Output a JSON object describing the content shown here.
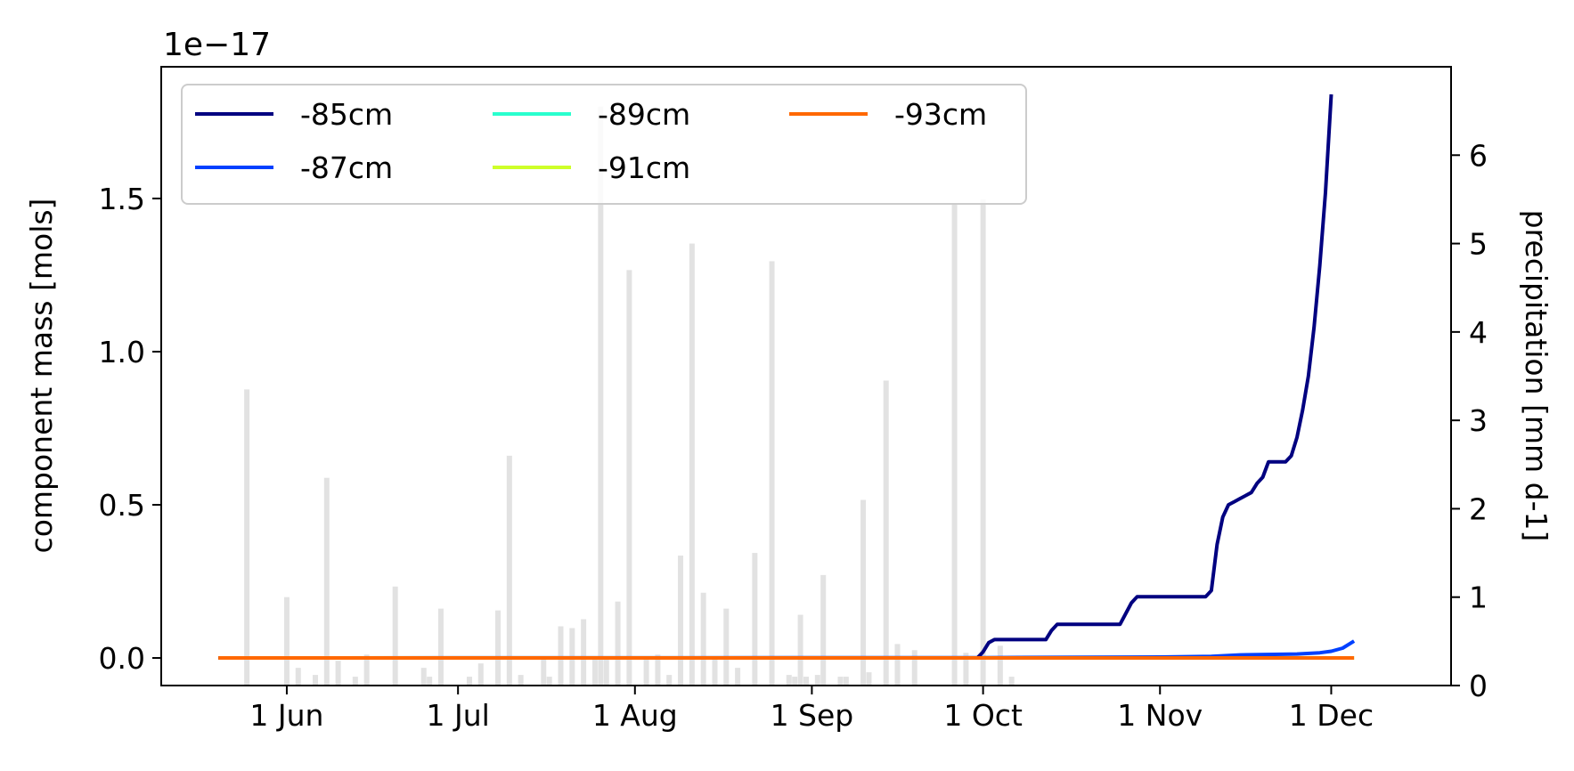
{
  "chart_data": {
    "type": "line",
    "title": "",
    "xlabel": "",
    "ylabel": "component mass [mols]",
    "y_offset_label": "1e−17",
    "y_scale": 1e-17,
    "ylim": [
      -0.09,
      1.93
    ],
    "yticks": [
      0.0,
      0.5,
      1.0,
      1.5
    ],
    "ytick_labels": [
      "0.0",
      "0.5",
      "1.0",
      "1.5"
    ],
    "xlim": [
      "2020-05-10",
      "2020-12-22"
    ],
    "xticks": [
      "2020-06-01",
      "2020-07-01",
      "2020-08-01",
      "2020-09-01",
      "2020-10-01",
      "2020-11-01",
      "2020-12-01"
    ],
    "xtick_labels": [
      "1 Jun",
      "1 Jul",
      "1 Aug",
      "1 Sep",
      "1 Oct",
      "1 Nov",
      "1 Dec"
    ],
    "y2label": "precipitation [mm d-1]",
    "y2lim": [
      0,
      7.0
    ],
    "y2ticks": [
      0,
      1,
      2,
      3,
      4,
      5,
      6
    ],
    "y2tick_labels": [
      "0",
      "1",
      "2",
      "3",
      "4",
      "5",
      "6"
    ],
    "grid": false,
    "legend": {
      "placement": "upper-left",
      "columns": 3
    },
    "series": [
      {
        "name": "-85cm",
        "color": "#000080",
        "x": [
          "2020-05-20",
          "2020-06-10",
          "2020-07-10",
          "2020-08-10",
          "2020-09-10",
          "2020-09-30",
          "2020-10-01",
          "2020-10-02",
          "2020-10-03",
          "2020-10-12",
          "2020-10-13",
          "2020-10-14",
          "2020-10-15",
          "2020-10-25",
          "2020-10-27",
          "2020-10-28",
          "2020-11-09",
          "2020-11-10",
          "2020-11-11",
          "2020-11-12",
          "2020-11-13",
          "2020-11-14",
          "2020-11-15",
          "2020-11-17",
          "2020-11-18",
          "2020-11-19",
          "2020-11-20",
          "2020-11-21",
          "2020-11-22",
          "2020-11-23",
          "2020-11-24",
          "2020-11-25",
          "2020-11-26",
          "2020-11-27",
          "2020-11-28",
          "2020-11-29",
          "2020-11-30",
          "2020-12-01",
          "2020-12-02",
          "2020-12-03",
          "2020-12-04",
          "2020-12-05"
        ],
        "y": [
          0,
          0,
          0,
          0,
          0,
          0,
          0.02,
          0.05,
          0.06,
          0.06,
          0.09,
          0.11,
          0.11,
          0.11,
          0.18,
          0.2,
          0.2,
          0.22,
          0.37,
          0.46,
          0.5,
          0.51,
          0.52,
          0.54,
          0.57,
          0.59,
          0.64,
          0.64,
          0.64,
          0.64,
          0.66,
          0.72,
          0.81,
          0.92,
          1.08,
          1.28,
          1.52,
          1.84,
          0,
          0,
          0,
          0
        ],
        "y_valid_count": 38,
        "note_x_end": "2020-12-05"
      },
      {
        "name": "-87cm",
        "color": "#0040ff",
        "x": [
          "2020-05-20",
          "2020-10-01",
          "2020-11-01",
          "2020-11-10",
          "2020-11-15",
          "2020-11-25",
          "2020-11-29",
          "2020-12-01",
          "2020-12-03",
          "2020-12-05"
        ],
        "y": [
          0,
          0.001,
          0.003,
          0.005,
          0.01,
          0.013,
          0.017,
          0.022,
          0.032,
          0.055
        ]
      },
      {
        "name": "-89cm",
        "color": "#29ffce",
        "x": [
          "2020-05-20",
          "2020-12-05"
        ],
        "y": [
          0,
          0
        ]
      },
      {
        "name": "-91cm",
        "color": "#ceff29",
        "x": [
          "2020-05-20",
          "2020-12-05"
        ],
        "y": [
          0,
          0
        ]
      },
      {
        "name": "-93cm",
        "color": "#ff6800",
        "x": [
          "2020-05-20",
          "2020-12-05"
        ],
        "y": [
          0,
          0
        ]
      }
    ],
    "precip_bars": {
      "color": "#e2e2e2",
      "axis": "right",
      "x": [
        "2020-05-25",
        "2020-06-01",
        "2020-06-03",
        "2020-06-06",
        "2020-06-08",
        "2020-06-10",
        "2020-06-13",
        "2020-06-15",
        "2020-06-20",
        "2020-06-25",
        "2020-06-26",
        "2020-06-28",
        "2020-07-03",
        "2020-07-05",
        "2020-07-08",
        "2020-07-10",
        "2020-07-12",
        "2020-07-16",
        "2020-07-17",
        "2020-07-19",
        "2020-07-21",
        "2020-07-23",
        "2020-07-25",
        "2020-07-26",
        "2020-07-27",
        "2020-07-29",
        "2020-07-31",
        "2020-08-03",
        "2020-08-05",
        "2020-08-07",
        "2020-08-09",
        "2020-08-11",
        "2020-08-13",
        "2020-08-15",
        "2020-08-17",
        "2020-08-19",
        "2020-08-22",
        "2020-08-25",
        "2020-08-28",
        "2020-08-29",
        "2020-08-30",
        "2020-08-31",
        "2020-09-02",
        "2020-09-03",
        "2020-09-06",
        "2020-09-07",
        "2020-09-10",
        "2020-09-11",
        "2020-09-14",
        "2020-09-16",
        "2020-09-19",
        "2020-09-26",
        "2020-09-28",
        "2020-10-01",
        "2020-10-04",
        "2020-10-06"
      ],
      "values": [
        3.35,
        1.0,
        0.2,
        0.12,
        2.35,
        0.28,
        0.1,
        0.35,
        1.12,
        0.2,
        0.1,
        0.87,
        0.1,
        0.25,
        0.85,
        2.6,
        0.12,
        0.3,
        0.1,
        0.67,
        0.65,
        0.75,
        0.3,
        6.55,
        0.3,
        0.95,
        4.7,
        0.3,
        0.35,
        0.12,
        1.47,
        5.0,
        1.05,
        0.3,
        0.87,
        0.2,
        1.5,
        4.8,
        0.12,
        0.1,
        0.8,
        0.1,
        0.12,
        1.25,
        0.1,
        0.1,
        2.1,
        0.15,
        3.45,
        0.47,
        0.4,
        5.45,
        0.37,
        5.5,
        0.45,
        0.1
      ]
    }
  }
}
